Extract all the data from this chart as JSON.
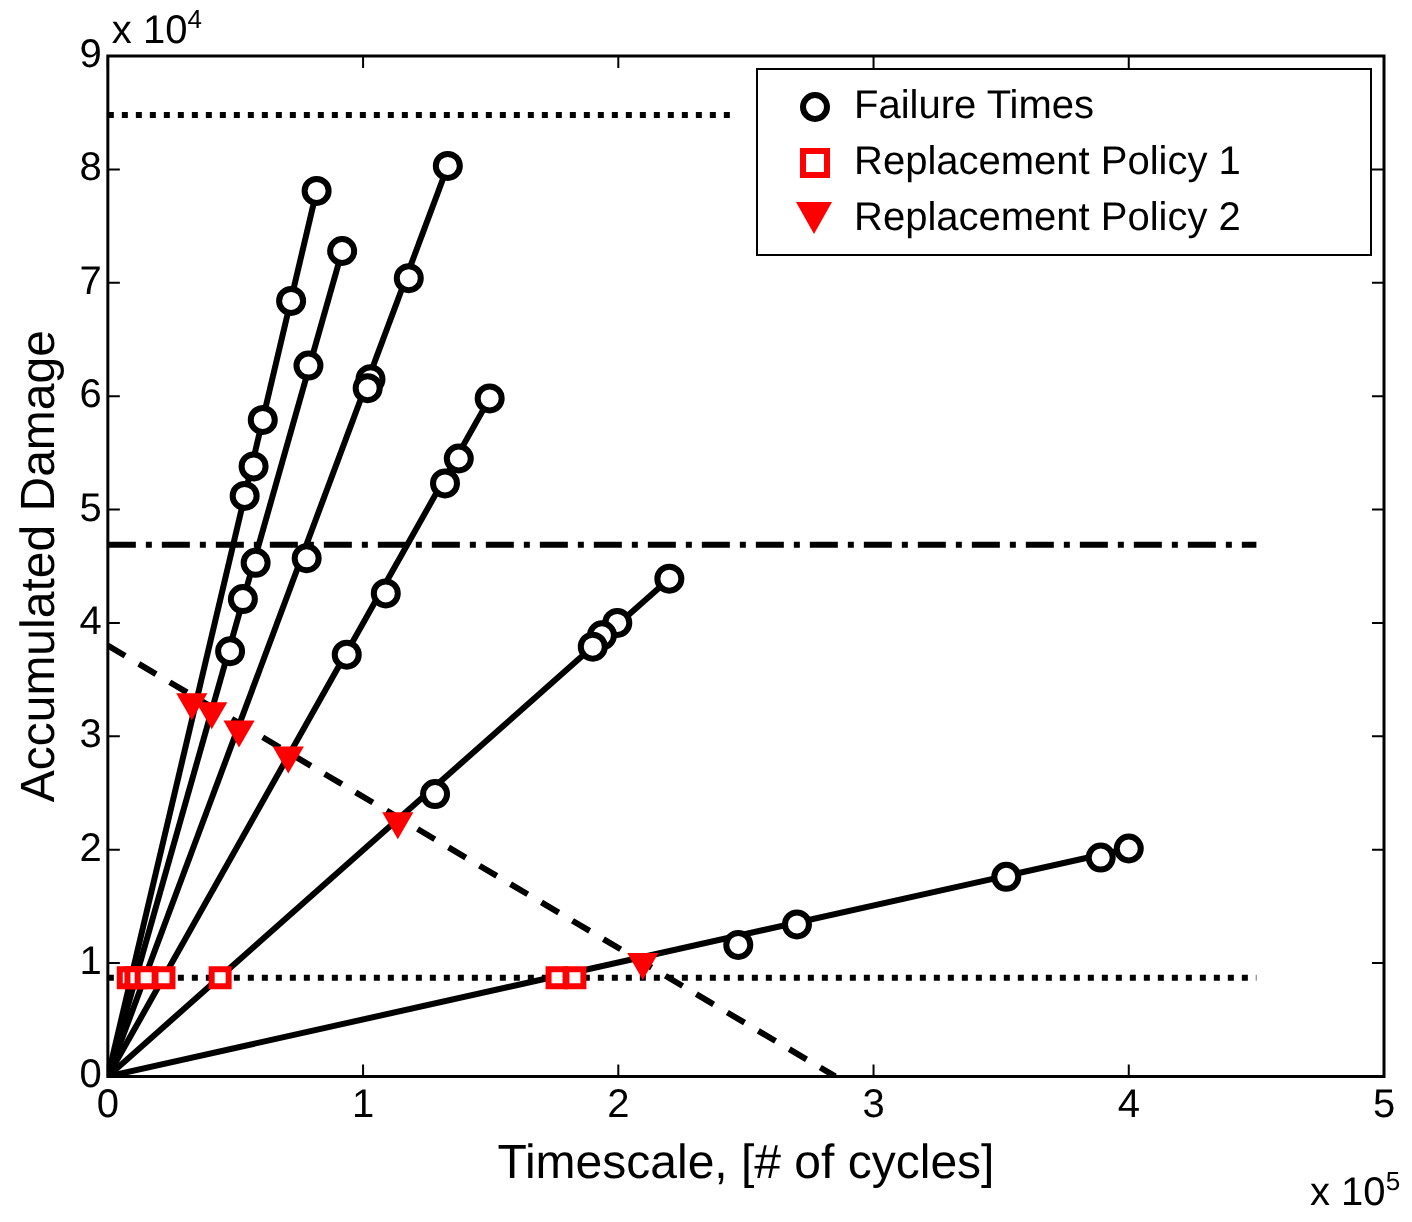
{
  "chart_data": {
    "type": "scatter",
    "xlabel": "Timescale, [# of cycles]",
    "ylabel": "Accumulated Damage",
    "xlim": [
      0,
      5
    ],
    "ylim": [
      0,
      9
    ],
    "xticks": [
      0,
      1,
      2,
      3,
      4,
      5
    ],
    "yticks": [
      0,
      1,
      2,
      3,
      4,
      5,
      6,
      7,
      8,
      9
    ],
    "grid": false,
    "legend": "top right",
    "annotations": [
      "x 10$^{4}$",
      "x 10$^{5}$"
    ],
    "series": [
      {
        "type": "line",
        "color": "#000000",
        "marker": "none",
        "line_style": "solid",
        "x": [
          0,
          0.818
        ],
        "values": [
          0,
          7.81
        ]
      },
      {
        "type": "line",
        "color": "#000000",
        "marker": "none",
        "line_style": "solid",
        "x": [
          0,
          0.918
        ],
        "values": [
          0,
          7.28
        ]
      },
      {
        "type": "line",
        "color": "#000000",
        "marker": "none",
        "line_style": "solid",
        "x": [
          0,
          1.332
        ],
        "values": [
          0,
          8.03
        ]
      },
      {
        "type": "line",
        "color": "#000000",
        "marker": "none",
        "line_style": "solid",
        "x": [
          0,
          1.496
        ],
        "values": [
          0,
          5.98
        ]
      },
      {
        "type": "line",
        "color": "#000000",
        "marker": "none",
        "line_style": "solid",
        "x": [
          0,
          2.2
        ],
        "values": [
          0,
          4.39
        ]
      },
      {
        "type": "line",
        "color": "#000000",
        "marker": "none",
        "line_style": "solid",
        "x": [
          0,
          4.0
        ],
        "values": [
          0,
          2.01
        ]
      },
      {
        "type": "line",
        "color": "#000000",
        "marker": "none",
        "line_style": "dotted",
        "x": [
          0,
          2.45
        ],
        "values": [
          8.48,
          8.48
        ]
      },
      {
        "type": "line",
        "color": "#000000",
        "marker": "none",
        "line_style": "dashdot",
        "x": [
          0,
          4.5
        ],
        "values": [
          4.69,
          4.69
        ]
      },
      {
        "type": "line",
        "color": "#000000",
        "marker": "none",
        "line_style": "dotted",
        "x": [
          0,
          4.5
        ],
        "values": [
          0.87,
          0.87
        ]
      },
      {
        "type": "line",
        "color": "#000000",
        "marker": "none",
        "line_style": "dashed",
        "x": [
          0,
          2.85
        ],
        "values": [
          3.8,
          0
        ]
      },
      {
        "name": "Failure Times",
        "type": "scatter",
        "color": "#000000",
        "marker": "circle",
        "x": [
          0.818,
          0.718,
          0.607,
          0.571,
          0.536,
          0.918,
          0.786,
          0.579,
          0.529,
          0.479,
          1.332,
          1.179,
          1.029,
          1.018,
          0.779,
          1.496,
          1.375,
          1.321,
          1.089,
          0.936,
          2.2,
          1.996,
          1.936,
          1.9,
          1.282,
          4.0,
          3.89,
          3.52,
          2.7,
          2.47
        ],
        "values": [
          7.81,
          6.84,
          5.79,
          5.38,
          5.12,
          7.28,
          6.27,
          4.53,
          4.21,
          3.75,
          8.03,
          7.04,
          6.15,
          6.07,
          4.57,
          5.98,
          5.45,
          5.23,
          4.26,
          3.72,
          4.39,
          4.0,
          3.89,
          3.79,
          2.49,
          2.01,
          1.93,
          1.76,
          1.34,
          1.16
        ]
      },
      {
        "name": "Replacement Policy 1",
        "type": "scatter",
        "color": "#ff0000",
        "marker": "square",
        "x": [
          0.08,
          0.11,
          0.15,
          0.22,
          0.44,
          1.76,
          1.83
        ],
        "values": [
          0.87,
          0.87,
          0.87,
          0.87,
          0.87,
          0.87,
          0.87
        ]
      },
      {
        "name": "Replacement Policy 2",
        "type": "scatter",
        "color": "#ff0000",
        "marker": "triangle",
        "x": [
          0.329,
          0.407,
          0.514,
          0.707,
          1.136,
          2.096
        ],
        "values": [
          3.3,
          3.22,
          3.06,
          2.83,
          2.25,
          1.01
        ]
      }
    ]
  }
}
